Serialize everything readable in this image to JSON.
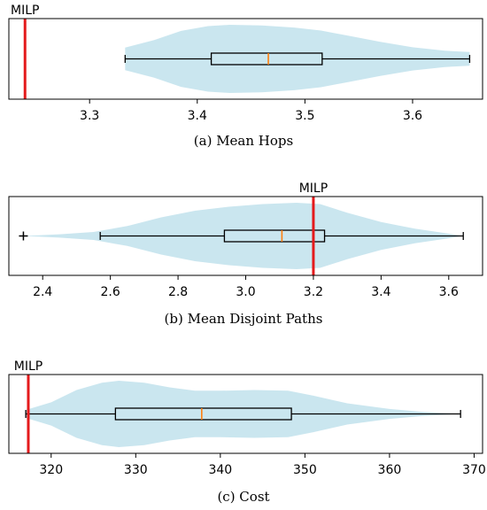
{
  "chart_data": [
    {
      "type": "violin",
      "caption": "(a) Mean Hops",
      "xlim": [
        3.225,
        3.665
      ],
      "ticks": [
        3.3,
        3.4,
        3.5,
        3.6
      ],
      "tick_labels": [
        "3.3",
        "3.4",
        "3.5",
        "3.6"
      ],
      "reference": {
        "label": "MILP",
        "value": 3.24,
        "color": "#e41a1c"
      },
      "box": {
        "whisker_low": 3.333,
        "q1": 3.413,
        "median": 3.466,
        "q3": 3.516,
        "whisker_high": 3.653
      },
      "outliers": [],
      "density": [
        [
          3.333,
          0.33
        ],
        [
          3.36,
          0.55
        ],
        [
          3.385,
          0.82
        ],
        [
          3.41,
          0.96
        ],
        [
          3.43,
          1.0
        ],
        [
          3.46,
          0.98
        ],
        [
          3.49,
          0.92
        ],
        [
          3.515,
          0.83
        ],
        [
          3.54,
          0.68
        ],
        [
          3.57,
          0.5
        ],
        [
          3.6,
          0.34
        ],
        [
          3.63,
          0.24
        ],
        [
          3.653,
          0.2
        ]
      ],
      "violin_color": "#add8e6",
      "median_color": "#ff7f0e"
    },
    {
      "type": "violin",
      "caption": "(b) Mean Disjoint Paths",
      "xlim": [
        2.3,
        3.7
      ],
      "ticks": [
        2.4,
        2.6,
        2.8,
        3.0,
        3.2,
        3.4,
        3.6
      ],
      "tick_labels": [
        "2.4",
        "2.6",
        "2.8",
        "3.0",
        "3.2",
        "3.4",
        "3.6"
      ],
      "reference": {
        "label": "MILP",
        "value": 3.2,
        "color": "#e41a1c"
      },
      "box": {
        "whisker_low": 2.57,
        "q1": 2.937,
        "median": 3.107,
        "q3": 3.233,
        "whisker_high": 3.643
      },
      "outliers": [
        2.343
      ],
      "density": [
        [
          2.343,
          0.0
        ],
        [
          2.45,
          0.05
        ],
        [
          2.55,
          0.12
        ],
        [
          2.65,
          0.3
        ],
        [
          2.75,
          0.56
        ],
        [
          2.85,
          0.76
        ],
        [
          2.95,
          0.88
        ],
        [
          3.05,
          0.96
        ],
        [
          3.15,
          1.0
        ],
        [
          3.22,
          0.96
        ],
        [
          3.3,
          0.7
        ],
        [
          3.4,
          0.42
        ],
        [
          3.5,
          0.22
        ],
        [
          3.6,
          0.07
        ],
        [
          3.643,
          0.0
        ]
      ],
      "violin_color": "#add8e6",
      "median_color": "#ff7f0e"
    },
    {
      "type": "violin",
      "caption": "(c) Cost",
      "xlim": [
        315.0,
        371.0
      ],
      "ticks": [
        320,
        330,
        340,
        350,
        360,
        370
      ],
      "tick_labels": [
        "320",
        "330",
        "340",
        "350",
        "360",
        "370"
      ],
      "reference": {
        "label": "MILP",
        "value": 317.3,
        "color": "#e41a1c"
      },
      "box": {
        "whisker_low": 317.0,
        "q1": 327.6,
        "median": 337.8,
        "q3": 348.4,
        "whisker_high": 368.4
      },
      "outliers": [],
      "density": [
        [
          317.0,
          0.12
        ],
        [
          320.0,
          0.35
        ],
        [
          323.0,
          0.72
        ],
        [
          326.0,
          0.94
        ],
        [
          328.0,
          1.0
        ],
        [
          331.0,
          0.94
        ],
        [
          334.0,
          0.8
        ],
        [
          337.0,
          0.7
        ],
        [
          340.0,
          0.7
        ],
        [
          344.0,
          0.72
        ],
        [
          348.0,
          0.7
        ],
        [
          351.0,
          0.55
        ],
        [
          355.0,
          0.32
        ],
        [
          360.0,
          0.15
        ],
        [
          364.0,
          0.06
        ],
        [
          368.4,
          0.0
        ]
      ],
      "violin_color": "#add8e6",
      "median_color": "#ff7f0e"
    }
  ]
}
